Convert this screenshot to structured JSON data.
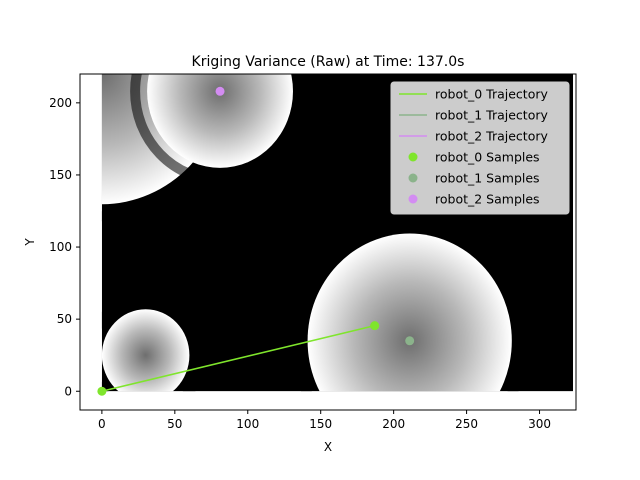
{
  "chart_data": {
    "type": "scatter",
    "title": "Kriging Variance (Raw) at Time: 137.0s",
    "xlabel": "X",
    "ylabel": "Y",
    "xlim": [
      -15,
      325
    ],
    "ylim": [
      -13,
      220
    ],
    "xticks": [
      0,
      50,
      100,
      150,
      200,
      250,
      300
    ],
    "yticks": [
      0,
      50,
      100,
      150,
      200
    ],
    "grid": false,
    "legend_position": "upper right",
    "background": {
      "type": "heatmap",
      "colormap": "gray",
      "extent": {
        "x": [
          0,
          323
        ],
        "y": [
          0,
          220
        ]
      },
      "description_free": true,
      "blobs": [
        {
          "cx": 0,
          "cy": 220,
          "r": 85
        },
        {
          "cx": 81,
          "cy": 208,
          "r": 50
        },
        {
          "cx": 30,
          "cy": 25,
          "r": 30
        },
        {
          "cx": 211,
          "cy": 35,
          "r": 70
        }
      ]
    },
    "series": [
      {
        "name": "robot_0 Trajectory",
        "kind": "line",
        "color": "#7fe52c",
        "x": [
          0,
          187
        ],
        "y": [
          0,
          45.5
        ]
      },
      {
        "name": "robot_1 Trajectory",
        "kind": "line",
        "color": "#8bb38b",
        "x": [],
        "y": []
      },
      {
        "name": "robot_2 Trajectory",
        "kind": "line",
        "color": "#d38cf2",
        "x": [],
        "y": []
      },
      {
        "name": "robot_0 Samples",
        "kind": "scatter",
        "color": "#7fe52c",
        "x": [
          0,
          187
        ],
        "y": [
          0,
          45.5
        ]
      },
      {
        "name": "robot_1 Samples",
        "kind": "scatter",
        "color": "#8bb38b",
        "x": [
          211
        ],
        "y": [
          35
        ]
      },
      {
        "name": "robot_2 Samples",
        "kind": "scatter",
        "color": "#d38cf2",
        "x": [
          81
        ],
        "y": [
          208
        ]
      }
    ]
  }
}
